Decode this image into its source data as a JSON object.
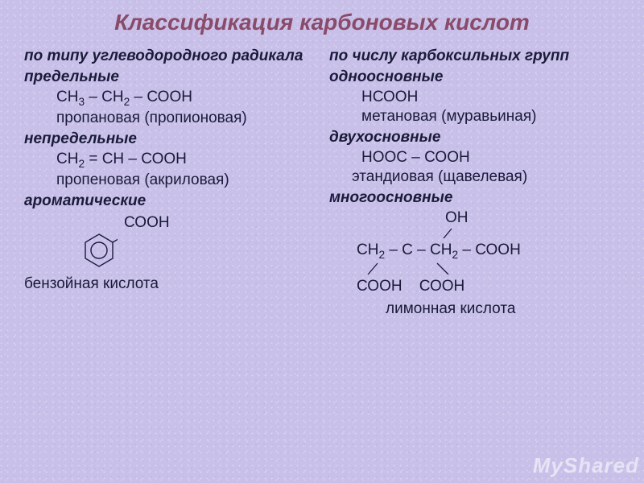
{
  "title": "Классификация карбоновых кислот",
  "title_color": "#8a4a6a",
  "text_color": "#1a1a3a",
  "background_tint": "#c8c0e8",
  "font_family": "Arial",
  "title_fontsize": 28,
  "body_fontsize": 19,
  "left": {
    "heading": "по типу углеводородного радикала",
    "groups": [
      {
        "sub": "предельные",
        "formula_html": "СН<sub>3</sub> – СН<sub>2</sub> – СООН",
        "name": "пропановая (пропионовая)"
      },
      {
        "sub": "непредельные",
        "formula_html": "СН<sub>2</sub> = СН – СООН",
        "name": "пропеновая (акриловая)"
      },
      {
        "sub": "ароматические",
        "formula_html": "СООН",
        "name": "бензойная кислота",
        "has_benzene": true
      }
    ]
  },
  "right": {
    "heading": "по числу карбоксильных групп",
    "groups": [
      {
        "sub": "одноосновные",
        "formula_html": "НСООН",
        "name": "метановая (муравьиная)"
      },
      {
        "sub": "двухосновные",
        "formula_html": "НООС – СООН",
        "name": "этандиовая (щавелевая)"
      },
      {
        "sub": "многоосновные",
        "citric": {
          "oh": "ОН",
          "main": "СН<sub>2</sub> – С – СН<sub>2</sub> – СООН",
          "bottom": "СООН    СООН",
          "name": "лимонная кислота"
        }
      }
    ]
  },
  "benzene": {
    "stroke": "#1a1a3a",
    "stroke_width": 1.4,
    "size": 46
  },
  "watermark": "MyShared"
}
